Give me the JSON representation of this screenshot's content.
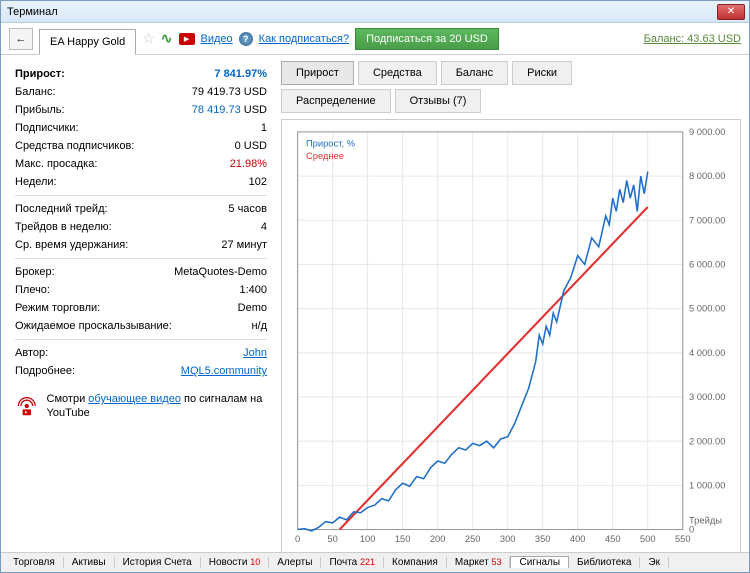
{
  "window": {
    "title": "Терминал"
  },
  "toolbar": {
    "back": "←",
    "tab_name": "EA Happy Gold",
    "video_label": "Видео",
    "howto_label": "Как подписаться?",
    "subscribe_label": "Подписаться за 20 USD",
    "balance_label": "Баланс: 43.63 USD"
  },
  "stats": {
    "growth_k": "Прирост:",
    "growth_v": "7 841.97%",
    "balance_k": "Баланс:",
    "balance_v": "79 419.73 USD",
    "profit_k": "Прибыль:",
    "profit_v": "78 419.73",
    "profit_unit": " USD",
    "subs_k": "Подписчики:",
    "subs_v": "1",
    "subfunds_k": "Средства подписчиков:",
    "subfunds_v": "0 USD",
    "drawdown_k": "Макс. просадка:",
    "drawdown_v": "21.98%",
    "weeks_k": "Недели:",
    "weeks_v": "102",
    "lasttrade_k": "Последний трейд:",
    "lasttrade_v": "5 часов",
    "tradesweek_k": "Трейдов в неделю:",
    "tradesweek_v": "4",
    "holdtime_k": "Ср. время удержания:",
    "holdtime_v": "27 минут",
    "broker_k": "Брокер:",
    "broker_v": "MetaQuotes-Demo",
    "leverage_k": "Плечо:",
    "leverage_v": "1:400",
    "mode_k": "Режим торговли:",
    "mode_v": "Demo",
    "slippage_k": "Ожидаемое проскальзывание:",
    "slippage_v": "н/д",
    "author_k": "Автор:",
    "author_v": "John",
    "more_k": "Подробнее:",
    "more_v": "MQL5.community"
  },
  "promo": {
    "text1": "Смотри ",
    "link": "обучающее видео",
    "text2": " по сигналам на YouTube"
  },
  "rtabs": {
    "growth": "Прирост",
    "equity": "Средства",
    "balance": "Баланс",
    "risks": "Риски",
    "distribution": "Распределение",
    "reviews": "Отзывы (7)"
  },
  "chart": {
    "legend_growth": "Прирост, %",
    "legend_mean": "Среднее",
    "xlabel": "Трейды",
    "x_ticks": [
      0,
      50,
      100,
      150,
      200,
      250,
      300,
      350,
      400,
      450,
      500,
      550
    ],
    "y_ticks": [
      0,
      1000,
      2000,
      3000,
      4000,
      5000,
      6000,
      7000,
      8000,
      9000
    ],
    "y_tick_labels": [
      "0",
      "1 000.00",
      "2 000.00",
      "3 000.00",
      "4 000.00",
      "5 000.00",
      "6 000.00",
      "7 000.00",
      "8 000.00",
      "9 000.00"
    ],
    "line_color": "#1e6fc9",
    "mean_color": "#e03030",
    "grid_color": "#e8e8e8",
    "data_points": [
      [
        0,
        0
      ],
      [
        10,
        20
      ],
      [
        20,
        -30
      ],
      [
        30,
        50
      ],
      [
        40,
        180
      ],
      [
        50,
        150
      ],
      [
        60,
        280
      ],
      [
        70,
        220
      ],
      [
        80,
        400
      ],
      [
        90,
        380
      ],
      [
        100,
        500
      ],
      [
        110,
        550
      ],
      [
        120,
        700
      ],
      [
        130,
        650
      ],
      [
        140,
        900
      ],
      [
        150,
        1050
      ],
      [
        160,
        980
      ],
      [
        170,
        1200
      ],
      [
        180,
        1150
      ],
      [
        190,
        1400
      ],
      [
        200,
        1550
      ],
      [
        210,
        1500
      ],
      [
        220,
        1700
      ],
      [
        230,
        1850
      ],
      [
        240,
        1800
      ],
      [
        250,
        1950
      ],
      [
        260,
        1900
      ],
      [
        270,
        2000
      ],
      [
        280,
        1850
      ],
      [
        290,
        2050
      ],
      [
        300,
        2100
      ],
      [
        310,
        2400
      ],
      [
        320,
        2800
      ],
      [
        330,
        3200
      ],
      [
        340,
        3800
      ],
      [
        345,
        4400
      ],
      [
        350,
        4200
      ],
      [
        355,
        4600
      ],
      [
        360,
        4400
      ],
      [
        365,
        4900
      ],
      [
        370,
        4700
      ],
      [
        380,
        5400
      ],
      [
        390,
        5700
      ],
      [
        400,
        6200
      ],
      [
        410,
        6000
      ],
      [
        420,
        6600
      ],
      [
        430,
        6400
      ],
      [
        440,
        7100
      ],
      [
        445,
        6900
      ],
      [
        450,
        7500
      ],
      [
        455,
        7200
      ],
      [
        460,
        7700
      ],
      [
        465,
        7400
      ],
      [
        470,
        7900
      ],
      [
        475,
        7500
      ],
      [
        480,
        7800
      ],
      [
        485,
        7200
      ],
      [
        490,
        8000
      ],
      [
        495,
        7600
      ],
      [
        500,
        8100
      ]
    ],
    "mean_line": [
      [
        60,
        0
      ],
      [
        500,
        7300
      ]
    ]
  },
  "bottom": {
    "trade": "Торговля",
    "assets": "Активы",
    "history": "История Счета",
    "news": "Новости",
    "news_n": "10",
    "alerts": "Алерты",
    "mail": "Почта",
    "mail_n": "221",
    "company": "Компания",
    "market": "Маркет",
    "market_n": "53",
    "signals": "Сигналы",
    "library": "Библиотека",
    "experts": "Эк"
  }
}
